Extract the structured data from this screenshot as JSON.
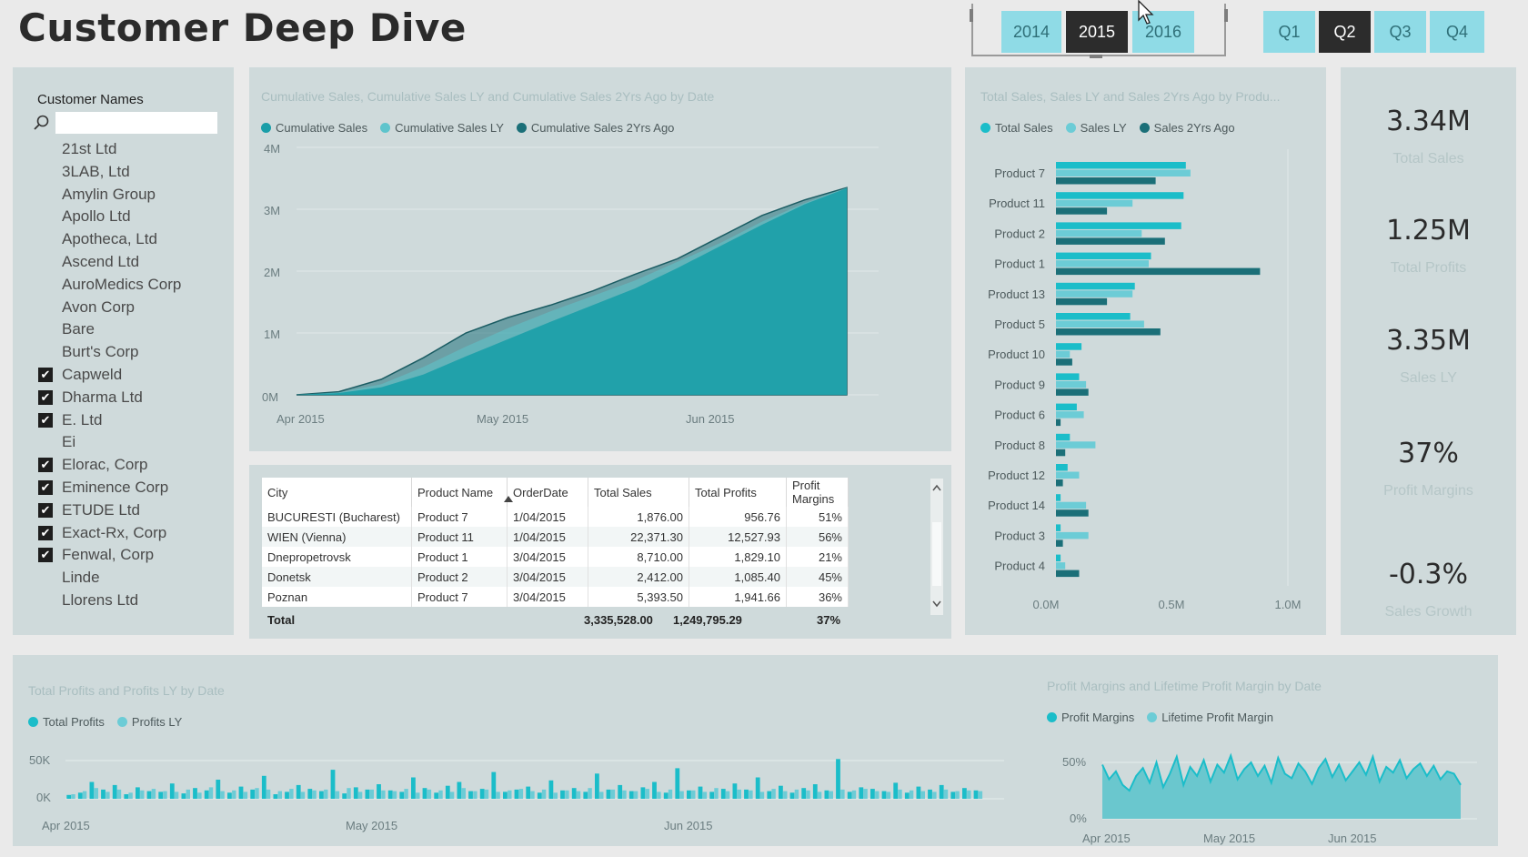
{
  "page": {
    "title": "Customer Deep Dive"
  },
  "slicers": {
    "years": [
      {
        "label": "2014",
        "selected": false
      },
      {
        "label": "2015",
        "selected": true
      },
      {
        "label": "2016",
        "selected": false
      }
    ],
    "quarters": [
      {
        "label": "Q1",
        "selected": false
      },
      {
        "label": "Q2",
        "selected": true
      },
      {
        "label": "Q3",
        "selected": false
      },
      {
        "label": "Q4",
        "selected": false
      }
    ]
  },
  "customers": {
    "header": "Customer Names",
    "search_value": "",
    "items": [
      {
        "name": "21st Ltd",
        "checked": false
      },
      {
        "name": "3LAB, Ltd",
        "checked": false
      },
      {
        "name": "Amylin Group",
        "checked": false
      },
      {
        "name": "Apollo Ltd",
        "checked": false
      },
      {
        "name": "Apotheca, Ltd",
        "checked": false
      },
      {
        "name": "Ascend Ltd",
        "checked": false
      },
      {
        "name": "AuroMedics Corp",
        "checked": false
      },
      {
        "name": "Avon Corp",
        "checked": false
      },
      {
        "name": "Bare",
        "checked": false
      },
      {
        "name": "Burt's Corp",
        "checked": false
      },
      {
        "name": "Capweld",
        "checked": true
      },
      {
        "name": "Dharma Ltd",
        "checked": true
      },
      {
        "name": "E. Ltd",
        "checked": true
      },
      {
        "name": "Ei",
        "checked": false
      },
      {
        "name": "Elorac, Corp",
        "checked": true
      },
      {
        "name": "Eminence Corp",
        "checked": true
      },
      {
        "name": "ETUDE Ltd",
        "checked": true
      },
      {
        "name": "Exact-Rx, Corp",
        "checked": true
      },
      {
        "name": "Fenwal, Corp",
        "checked": true
      },
      {
        "name": "Linde",
        "checked": false
      },
      {
        "name": "Llorens Ltd",
        "checked": false
      }
    ]
  },
  "colors": {
    "teal_dark": "#1b6f78",
    "teal_mid": "#2aa3ae",
    "teal_light": "#5ec4cc",
    "cyan": "#1bbdc9",
    "panel": "#cfdadb",
    "slicer_btn": "#8fdbe6",
    "slicer_selected": "#2c2c2c"
  },
  "cumulative_chart": {
    "title": "Cumulative Sales, Cumulative Sales LY and Cumulative Sales 2Yrs Ago by Date",
    "legend": [
      {
        "label": "Cumulative Sales",
        "color": "#1a9ea8"
      },
      {
        "label": "Cumulative Sales LY",
        "color": "#5ec4cc"
      },
      {
        "label": "Cumulative Sales 2Yrs Ago",
        "color": "#1b6f78"
      }
    ],
    "y_ticks": [
      "4M",
      "3M",
      "2M",
      "1M",
      "0M"
    ],
    "x_ticks": [
      "Apr 2015",
      "May 2015",
      "Jun 2015"
    ]
  },
  "product_chart": {
    "title": "Total Sales, Sales LY and Sales 2Yrs Ago by Produ...",
    "legend": [
      {
        "label": "Total Sales",
        "color": "#1bbdc9"
      },
      {
        "label": "Sales LY",
        "color": "#6cccd6"
      },
      {
        "label": "Sales 2Yrs Ago",
        "color": "#1b6f78"
      }
    ],
    "x_ticks": [
      "0.0M",
      "0.5M",
      "1.0M"
    ]
  },
  "table": {
    "columns": [
      "City",
      "Product Name",
      "OrderDate",
      "Total Sales",
      "Total Profits",
      "Profit Margins"
    ],
    "rows": [
      [
        "BUCURESTI (Bucharest)",
        "Product 7",
        "1/04/2015",
        "1,876.00",
        "956.76",
        "51%"
      ],
      [
        "WIEN (Vienna)",
        "Product 11",
        "1/04/2015",
        "22,371.30",
        "12,527.93",
        "56%"
      ],
      [
        "Dnepropetrovsk",
        "Product 1",
        "3/04/2015",
        "8,710.00",
        "1,829.10",
        "21%"
      ],
      [
        "Donetsk",
        "Product 2",
        "3/04/2015",
        "2,412.00",
        "1,085.40",
        "45%"
      ],
      [
        "Poznan",
        "Product 7",
        "3/04/2015",
        "5,393.50",
        "1,941.66",
        "36%"
      ]
    ],
    "total": {
      "label": "Total",
      "sales": "3,335,528.00",
      "profits": "1,249,795.29",
      "margin": "37%"
    }
  },
  "kpis": [
    {
      "value": "3.34M",
      "label": "Total Sales"
    },
    {
      "value": "1.25M",
      "label": "Total Profits"
    },
    {
      "value": "3.35M",
      "label": "Sales LY"
    },
    {
      "value": "37%",
      "label": "Profit Margins"
    },
    {
      "value": "-0.3%",
      "label": "Sales Growth"
    }
  ],
  "profits_chart": {
    "title": "Total Profits and Profits LY by Date",
    "legend": [
      {
        "label": "Total Profits",
        "color": "#1bbdc9"
      },
      {
        "label": "Profits LY",
        "color": "#6cccd6"
      }
    ],
    "y_ticks": [
      "50K",
      "0K"
    ],
    "x_ticks": [
      "Apr 2015",
      "May 2015",
      "Jun 2015"
    ]
  },
  "margins_chart": {
    "title": "Profit Margins and Lifetime Profit Margin by Date",
    "legend": [
      {
        "label": "Profit Margins",
        "color": "#1bbdc9"
      },
      {
        "label": "Lifetime Profit Margin",
        "color": "#6cccd6"
      }
    ],
    "y_ticks": [
      "50%",
      "0%"
    ],
    "x_ticks": [
      "Apr 2015",
      "May 2015",
      "Jun 2015"
    ]
  },
  "chart_data": [
    {
      "type": "area",
      "title": "Cumulative Sales, Cumulative Sales LY and Cumulative Sales 2Yrs Ago by Date",
      "xlabel": "",
      "ylabel": "",
      "ylim": [
        0,
        4000000
      ],
      "x": [
        "2015-04-01",
        "2015-04-08",
        "2015-04-15",
        "2015-04-22",
        "2015-04-29",
        "2015-05-06",
        "2015-05-13",
        "2015-05-20",
        "2015-05-27",
        "2015-06-03",
        "2015-06-10",
        "2015-06-17",
        "2015-06-24",
        "2015-06-30"
      ],
      "series": [
        {
          "name": "Cumulative Sales 2Yrs Ago",
          "values": [
            0,
            50000,
            250000,
            600000,
            1000000,
            1250000,
            1450000,
            1680000,
            1950000,
            2200000,
            2550000,
            2900000,
            3150000,
            3350000
          ]
        },
        {
          "name": "Cumulative Sales LY",
          "values": [
            0,
            40000,
            170000,
            450000,
            780000,
            1080000,
            1350000,
            1600000,
            1850000,
            2150000,
            2450000,
            2800000,
            3100000,
            3350000
          ]
        },
        {
          "name": "Cumulative Sales",
          "values": [
            0,
            30000,
            120000,
            330000,
            620000,
            900000,
            1180000,
            1450000,
            1720000,
            2050000,
            2400000,
            2750000,
            3080000,
            3340000
          ]
        }
      ],
      "grid": true,
      "legend": "top-left"
    },
    {
      "type": "bar",
      "orientation": "horizontal",
      "title": "Total Sales, Sales LY and Sales 2Yrs Ago by Produ...",
      "categories": [
        "Product 7",
        "Product 11",
        "Product 2",
        "Product 1",
        "Product 13",
        "Product 5",
        "Product 10",
        "Product 9",
        "Product 6",
        "Product 8",
        "Product 12",
        "Product 14",
        "Product 3",
        "Product 4"
      ],
      "series": [
        {
          "name": "Total Sales",
          "values": [
            0.56,
            0.55,
            0.54,
            0.41,
            0.34,
            0.32,
            0.11,
            0.1,
            0.09,
            0.06,
            0.05,
            0.02,
            0.02,
            0.02
          ]
        },
        {
          "name": "Sales LY",
          "values": [
            0.58,
            0.33,
            0.37,
            0.4,
            0.33,
            0.38,
            0.06,
            0.13,
            0.12,
            0.17,
            0.1,
            0.13,
            0.14,
            0.04
          ]
        },
        {
          "name": "Sales 2Yrs Ago",
          "values": [
            0.43,
            0.22,
            0.47,
            0.88,
            0.22,
            0.45,
            0.07,
            0.14,
            0.02,
            0.04,
            0.03,
            0.14,
            0.03,
            0.1
          ]
        }
      ],
      "xlim": [
        0,
        1.0
      ],
      "grid": false,
      "legend": "top-left"
    },
    {
      "type": "bar",
      "title": "Total Profits and Profits LY by Date",
      "series": [
        {
          "name": "Total Profits",
          "values": [
            5,
            8,
            22,
            12,
            18,
            6,
            15,
            10,
            9,
            20,
            7,
            14,
            11,
            25,
            8,
            16,
            12,
            30,
            6,
            9,
            18,
            13,
            10,
            38,
            7,
            15,
            12,
            19,
            11,
            9,
            28,
            14,
            8,
            17,
            22,
            10,
            13,
            35,
            9,
            12,
            16,
            8,
            24,
            11,
            14,
            9,
            33,
            12,
            18,
            10,
            15,
            22,
            8,
            40,
            11,
            16,
            9,
            13,
            20,
            12,
            28,
            10,
            17,
            8,
            14,
            19,
            11,
            52,
            9,
            15,
            13,
            10,
            21,
            8,
            16,
            12,
            18,
            9,
            14,
            11
          ]
        },
        {
          "name": "Profits LY",
          "values": [
            6,
            10,
            14,
            9,
            12,
            8,
            11,
            13,
            10,
            9,
            12,
            8,
            15,
            10,
            11,
            9,
            14,
            12,
            10,
            13,
            9,
            11,
            12,
            10,
            14,
            9,
            12,
            11,
            10,
            13,
            8,
            12,
            11,
            9,
            14,
            10,
            12,
            9,
            11,
            13,
            10,
            12,
            8,
            11,
            10,
            14,
            9,
            12,
            11,
            10,
            13,
            9,
            12,
            10,
            11,
            9,
            14,
            10,
            12,
            11,
            9,
            13,
            10,
            12,
            11,
            9,
            10,
            12,
            11,
            13,
            10,
            9,
            12,
            11,
            10,
            9,
            12,
            10,
            11,
            10
          ]
        }
      ],
      "ylim": [
        0,
        60000
      ],
      "grid": true,
      "legend": "top-left"
    },
    {
      "type": "area",
      "title": "Profit Margins and Lifetime Profit Margin by Date",
      "series": [
        {
          "name": "Profit Margins",
          "values": [
            48,
            35,
            42,
            30,
            25,
            38,
            45,
            32,
            50,
            28,
            40,
            55,
            30,
            46,
            38,
            52,
            33,
            48,
            41,
            56,
            35,
            44,
            50,
            38,
            47,
            32,
            54,
            40,
            36,
            49,
            42,
            31,
            45,
            53,
            37,
            48,
            34,
            42,
            50,
            39,
            55,
            33,
            46,
            41,
            52,
            36,
            44,
            49,
            38,
            47,
            35,
            42,
            40,
            30
          ]
        },
        {
          "name": "Lifetime Profit Margin",
          "values": [
            40,
            40,
            40,
            40,
            40,
            40,
            40,
            40,
            40,
            40,
            40,
            40,
            40,
            40,
            40,
            40,
            40,
            40,
            40,
            40,
            40,
            40,
            40,
            40,
            40,
            40,
            40,
            40,
            40,
            40,
            40,
            40,
            40,
            40,
            40,
            40,
            40,
            40,
            40,
            40,
            40,
            40,
            40,
            40,
            40,
            40,
            40,
            40,
            40,
            40,
            40,
            40,
            40,
            40
          ]
        }
      ],
      "ylim": [
        0,
        60
      ],
      "grid": true,
      "legend": "top-left"
    }
  ]
}
